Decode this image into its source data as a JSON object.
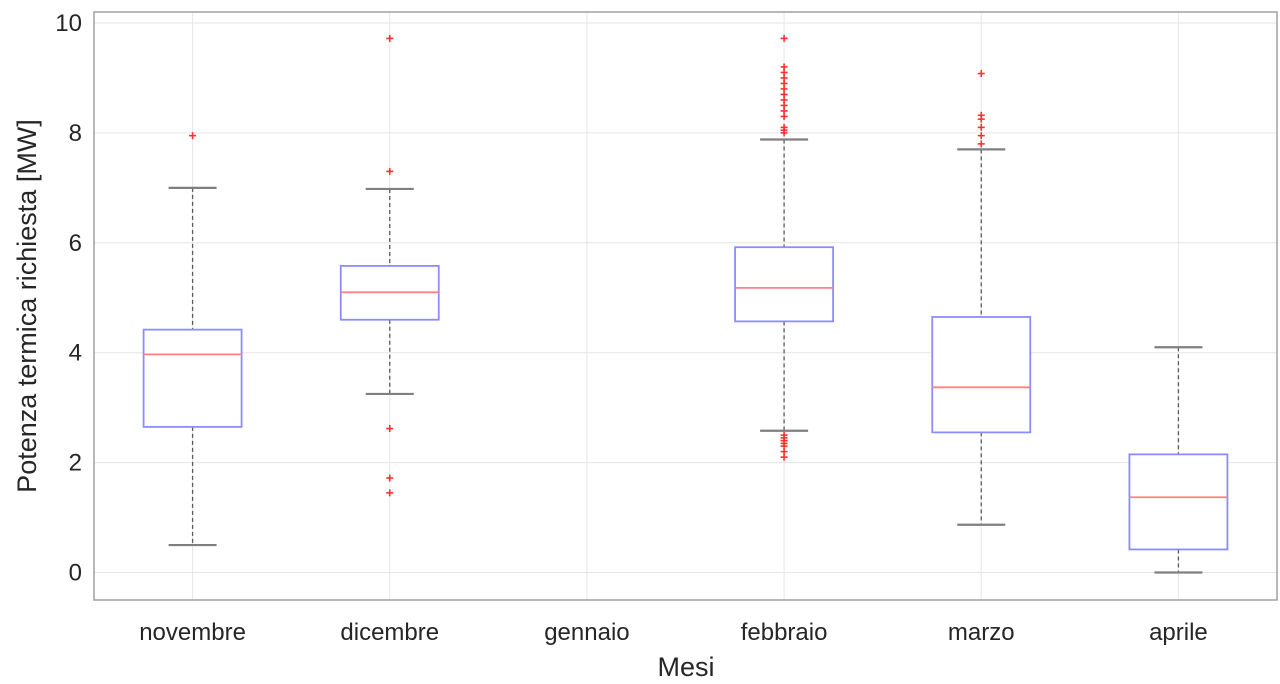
{
  "chart_data": {
    "type": "box",
    "title": "",
    "xlabel": "Mesi",
    "ylabel": "Potenza termica richiesta [MW]",
    "ylim": [
      -0.5,
      10.2
    ],
    "yticks": [
      0,
      2,
      4,
      6,
      8,
      10
    ],
    "grid": true,
    "colors": {
      "box": "#8c8cff",
      "median": "#ff8080",
      "whisker": "#5a5a5a",
      "cap": "#7f7f7f",
      "outlier": "#ff3030",
      "grid": "#e6e6e6",
      "axis": "#a0a0a0"
    },
    "categories": [
      "novembre",
      "dicembre",
      "gennaio",
      "febbraio",
      "marzo",
      "aprile"
    ],
    "boxes": [
      {
        "category": "novembre",
        "min": 0.5,
        "q1": 2.65,
        "median": 3.97,
        "q3": 4.42,
        "max": 7.0,
        "outliers": [
          7.95
        ]
      },
      {
        "category": "dicembre",
        "min": 3.25,
        "q1": 4.6,
        "median": 5.1,
        "q3": 5.58,
        "max": 6.98,
        "outliers": [
          9.72,
          7.3,
          2.62,
          1.72,
          1.45
        ]
      },
      {
        "category": "gennaio",
        "empty": true
      },
      {
        "category": "febbraio",
        "min": 2.58,
        "q1": 4.57,
        "median": 5.18,
        "q3": 5.92,
        "max": 7.88,
        "outliers": [
          9.72,
          9.2,
          9.1,
          9.0,
          8.9,
          8.8,
          8.7,
          8.6,
          8.5,
          8.4,
          8.3,
          8.1,
          8.05,
          8.0,
          2.5,
          2.45,
          2.4,
          2.35,
          2.3,
          2.2,
          2.1
        ]
      },
      {
        "category": "marzo",
        "min": 0.87,
        "q1": 2.55,
        "median": 3.37,
        "q3": 4.65,
        "max": 7.7,
        "outliers": [
          9.08,
          8.32,
          8.25,
          8.1,
          7.95,
          7.8
        ]
      },
      {
        "category": "aprile",
        "min": 0.0,
        "q1": 0.42,
        "median": 1.37,
        "q3": 2.15,
        "max": 4.1,
        "outliers": []
      }
    ]
  }
}
